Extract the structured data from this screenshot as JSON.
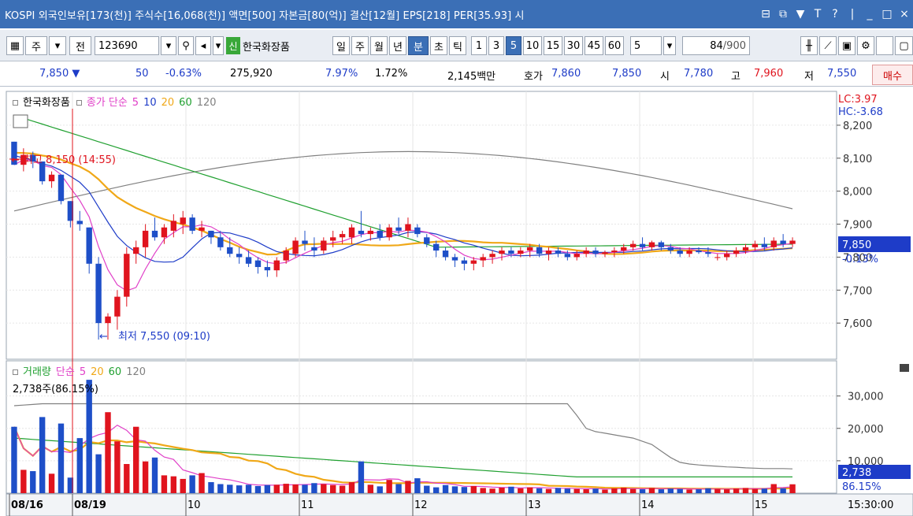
{
  "titlebar": {
    "text": "KOSPI 외국인보유[173(천)] 주식수[16,068(천)] 액면[500] 자본금[80(억)] 결산[12월] EPS[218] PER[35.93] 시",
    "icons": [
      "⊟",
      "⧉",
      "▼",
      "T",
      "?",
      "|",
      "_",
      "□",
      "×"
    ]
  },
  "toolbar": {
    "type_label": "주",
    "all_label": "전",
    "code_value": "123690",
    "stock_badge": "신",
    "stock_name": "한국화장품",
    "period_buttons": [
      "일",
      "주",
      "월",
      "년",
      "분",
      "초",
      "틱"
    ],
    "selected_period": "분",
    "interval_buttons": [
      "1",
      "3",
      "5",
      "10",
      "15",
      "30",
      "45",
      "60"
    ],
    "selected_interval": "5",
    "interval_select": "5",
    "count_value": "84",
    "count_total": "/900"
  },
  "quote": {
    "price": "7,850 ▼",
    "change": "50",
    "change_pct": "-0.63%",
    "volume": "275,920",
    "pct1": "7.97%",
    "pct2": "1.72%",
    "amount": "2,145백만",
    "hoga_label": "호가",
    "hoga1": "7,860",
    "hoga2": "7,850",
    "open_label": "시",
    "open": "7,780",
    "high_label": "고",
    "high": "7,960",
    "low_label": "저",
    "low": "7,550",
    "sell_label": "매수"
  },
  "price_panel": {
    "legend_name": "한국화장품",
    "legend_ma_title": "종가 단순",
    "ma_periods": [
      "5",
      "10",
      "20",
      "60",
      "120"
    ],
    "lc": "LC:3.97",
    "hc": "HC:-3.68",
    "max_label": "최고 8,150 (14:55)",
    "min_label": "최저 7,550 (09:10)",
    "current_price": "7,850",
    "current_pct": "-0.13%"
  },
  "volume_panel": {
    "legend_name": "거래량",
    "legend_ma_title": "단순",
    "ma_periods": [
      "5",
      "20",
      "60",
      "120"
    ],
    "info": "2,738주(86.15%)",
    "current_volume": "2,738",
    "current_pct": "86.15%"
  },
  "colors": {
    "up": "#e0141e",
    "down": "#1e4fc8",
    "ma5": "#e040c8",
    "ma10": "#1e3cc8",
    "ma20": "#f0a818",
    "ma60": "#20a030",
    "ma120": "#808080"
  },
  "chart_data": {
    "type": "candlestick",
    "price_ylim": [
      7500,
      8250
    ],
    "price_ticks": [
      "8,200",
      "8,100",
      "8,000",
      "7,900",
      "7,800",
      "7,700",
      "7,600"
    ],
    "volume_ylim": [
      0,
      36000
    ],
    "volume_ticks": [
      "30,000",
      "20,000",
      "10,000"
    ],
    "x_labels": [
      "08/16",
      "08/19",
      "10",
      "11",
      "12",
      "13",
      "14",
      "15"
    ],
    "time_label": "15:30:00",
    "candles": [
      [
        8150,
        8150,
        8080,
        8080
      ],
      [
        8080,
        8130,
        8060,
        8110
      ],
      [
        8110,
        8120,
        8070,
        8090
      ],
      [
        8090,
        8090,
        8020,
        8030
      ],
      [
        8030,
        8060,
        8010,
        8050
      ],
      [
        8050,
        8050,
        7960,
        7970
      ],
      [
        7970,
        7970,
        7890,
        7910
      ],
      [
        7910,
        7940,
        7880,
        7900
      ],
      [
        7890,
        7890,
        7750,
        7780
      ],
      [
        7780,
        7800,
        7550,
        7600
      ],
      [
        7600,
        7630,
        7550,
        7620
      ],
      [
        7620,
        7700,
        7580,
        7680
      ],
      [
        7680,
        7830,
        7650,
        7810
      ],
      [
        7810,
        7850,
        7780,
        7830
      ],
      [
        7830,
        7900,
        7800,
        7880
      ],
      [
        7880,
        7920,
        7850,
        7860
      ],
      [
        7860,
        7900,
        7840,
        7890
      ],
      [
        7880,
        7930,
        7860,
        7910
      ],
      [
        7900,
        7940,
        7870,
        7920
      ],
      [
        7920,
        7930,
        7870,
        7880
      ],
      [
        7880,
        7910,
        7860,
        7890
      ],
      [
        7880,
        7880,
        7840,
        7860
      ],
      [
        7860,
        7880,
        7820,
        7830
      ],
      [
        7830,
        7860,
        7800,
        7810
      ],
      [
        7810,
        7830,
        7780,
        7800
      ],
      [
        7800,
        7820,
        7770,
        7780
      ],
      [
        7790,
        7800,
        7750,
        7770
      ],
      [
        7770,
        7790,
        7740,
        7760
      ],
      [
        7760,
        7800,
        7740,
        7790
      ],
      [
        7790,
        7830,
        7780,
        7820
      ],
      [
        7810,
        7860,
        7800,
        7850
      ],
      [
        7850,
        7880,
        7820,
        7840
      ],
      [
        7830,
        7860,
        7800,
        7820
      ],
      [
        7820,
        7860,
        7810,
        7850
      ],
      [
        7850,
        7880,
        7830,
        7860
      ],
      [
        7860,
        7880,
        7840,
        7870
      ],
      [
        7860,
        7900,
        7840,
        7890
      ],
      [
        7880,
        7940,
        7860,
        7870
      ],
      [
        7870,
        7890,
        7850,
        7880
      ],
      [
        7880,
        7900,
        7850,
        7860
      ],
      [
        7860,
        7900,
        7850,
        7890
      ],
      [
        7890,
        7920,
        7870,
        7880
      ],
      [
        7880,
        7920,
        7860,
        7900
      ],
      [
        7890,
        7900,
        7860,
        7870
      ],
      [
        7860,
        7870,
        7830,
        7840
      ],
      [
        7840,
        7850,
        7800,
        7820
      ],
      [
        7820,
        7830,
        7790,
        7800
      ],
      [
        7800,
        7810,
        7770,
        7790
      ],
      [
        7790,
        7800,
        7760,
        7780
      ],
      [
        7780,
        7800,
        7760,
        7790
      ],
      [
        7790,
        7810,
        7770,
        7800
      ],
      [
        7800,
        7820,
        7780,
        7810
      ],
      [
        7810,
        7830,
        7790,
        7820
      ],
      [
        7820,
        7830,
        7800,
        7810
      ],
      [
        7810,
        7830,
        7800,
        7820
      ],
      [
        7820,
        7840,
        7800,
        7830
      ],
      [
        7830,
        7840,
        7800,
        7810
      ],
      [
        7810,
        7830,
        7790,
        7820
      ],
      [
        7820,
        7830,
        7800,
        7810
      ],
      [
        7810,
        7820,
        7790,
        7800
      ],
      [
        7800,
        7820,
        7790,
        7810
      ],
      [
        7810,
        7830,
        7800,
        7820
      ],
      [
        7820,
        7830,
        7800,
        7810
      ],
      [
        7810,
        7820,
        7800,
        7815
      ],
      [
        7815,
        7830,
        7800,
        7820
      ],
      [
        7820,
        7840,
        7810,
        7830
      ],
      [
        7830,
        7850,
        7820,
        7840
      ],
      [
        7840,
        7860,
        7820,
        7830
      ],
      [
        7830,
        7850,
        7820,
        7845
      ],
      [
        7845,
        7850,
        7820,
        7830
      ],
      [
        7830,
        7840,
        7810,
        7820
      ],
      [
        7820,
        7830,
        7800,
        7810
      ],
      [
        7810,
        7830,
        7800,
        7820
      ],
      [
        7820,
        7830,
        7810,
        7815
      ],
      [
        7815,
        7830,
        7800,
        7810
      ],
      [
        7800,
        7810,
        7790,
        7800
      ],
      [
        7800,
        7820,
        7790,
        7810
      ],
      [
        7810,
        7830,
        7800,
        7820
      ],
      [
        7820,
        7840,
        7810,
        7830
      ],
      [
        7830,
        7850,
        7820,
        7840
      ],
      [
        7840,
        7860,
        7820,
        7830
      ],
      [
        7830,
        7860,
        7820,
        7850
      ],
      [
        7850,
        7870,
        7830,
        7840
      ],
      [
        7840,
        7860,
        7830,
        7850
      ]
    ],
    "volumes": [
      20500,
      7200,
      6800,
      23500,
      6000,
      21500,
      4800,
      17000,
      35000,
      12000,
      25000,
      16000,
      9000,
      20500,
      9800,
      11000,
      5500,
      5200,
      4400,
      5500,
      6200,
      3400,
      2800,
      2600,
      2400,
      2600,
      2200,
      2500,
      2600,
      2900,
      2700,
      2600,
      3100,
      2800,
      2500,
      2300,
      3400,
      9800,
      2600,
      2100,
      4100,
      2800,
      3800,
      4600,
      2300,
      1800,
      2500,
      2100,
      1900,
      2200,
      1600,
      1400,
      1700,
      2000,
      1500,
      1800,
      1500,
      1300,
      1600,
      1400,
      1300,
      1200,
      1400,
      1100,
      1500,
      1700,
      1300,
      1200,
      1600,
      1200,
      1400,
      1300,
      1100,
      1200,
      1500,
      1300,
      1200,
      1400,
      1600,
      1300,
      1400,
      2800,
      1500,
      2738
    ],
    "ma120_volume": [
      27000,
      27200,
      27400,
      27600,
      27600,
      27600,
      27600,
      27600,
      27600,
      27600,
      27600,
      27600,
      27600,
      27600,
      27600,
      27600,
      27600,
      27600,
      27600,
      27600,
      27600,
      27600,
      27600,
      27600,
      27600,
      27600,
      27600,
      27600,
      27600,
      27600,
      27600,
      27600,
      27600,
      27600,
      27600,
      27600,
      27600,
      27600,
      27600,
      27600,
      27600,
      27600,
      27600,
      27600,
      27600,
      27600,
      27600,
      27600,
      27600,
      27600,
      27600,
      27600,
      27600,
      27600,
      27600,
      27600,
      27600,
      27600,
      27600,
      27600,
      24000,
      20000,
      19000,
      18500,
      18000,
      17500,
      17000,
      16000,
      15000,
      13000,
      11000,
      9500,
      9000,
      8700,
      8500,
      8300,
      8100,
      8000,
      7800,
      7700,
      7600,
      7600,
      7600,
      7500
    ]
  }
}
